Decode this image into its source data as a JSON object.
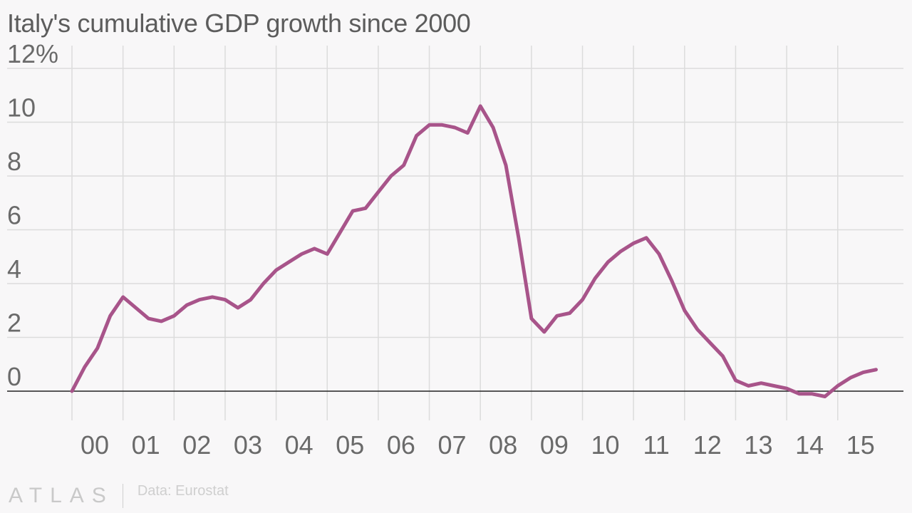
{
  "chart_data": {
    "type": "line",
    "title": "Italy's cumulative GDP growth since 2000",
    "xlabel": "",
    "ylabel": "",
    "ylim": [
      -0.8,
      12.5
    ],
    "y_ticks": [
      0,
      2,
      4,
      6,
      8,
      10,
      12
    ],
    "y_tick_labels": [
      "0",
      "2",
      "4",
      "6",
      "8",
      "10",
      "12%"
    ],
    "x_tick_labels": [
      " 00",
      " 01",
      " 02",
      " 03",
      " 04",
      " 05",
      " 06",
      " 07",
      " 08",
      " 09",
      " 10",
      " 11",
      " 12",
      " 13",
      " 14",
      " 15"
    ],
    "x_tick_years": [
      2000,
      2001,
      2002,
      2003,
      2004,
      2005,
      2006,
      2007,
      2008,
      2009,
      2010,
      2011,
      2012,
      2013,
      2014,
      2015
    ],
    "grid": true,
    "color": "#a8548a",
    "series": [
      {
        "x": [
          "2000-Q1",
          "2000-Q2",
          "2000-Q3",
          "2000-Q4",
          "2001-Q1",
          "2001-Q2",
          "2001-Q3",
          "2001-Q4",
          "2002-Q1",
          "2002-Q2",
          "2002-Q3",
          "2002-Q4",
          "2003-Q1",
          "2003-Q2",
          "2003-Q3",
          "2003-Q4",
          "2004-Q1",
          "2004-Q2",
          "2004-Q3",
          "2004-Q4",
          "2005-Q1",
          "2005-Q2",
          "2005-Q3",
          "2005-Q4",
          "2006-Q1",
          "2006-Q2",
          "2006-Q3",
          "2006-Q4",
          "2007-Q1",
          "2007-Q2",
          "2007-Q3",
          "2007-Q4",
          "2008-Q1",
          "2008-Q2",
          "2008-Q3",
          "2008-Q4",
          "2009-Q1",
          "2009-Q2",
          "2009-Q3",
          "2009-Q4",
          "2010-Q1",
          "2010-Q2",
          "2010-Q3",
          "2010-Q4",
          "2011-Q1",
          "2011-Q2",
          "2011-Q3",
          "2011-Q4",
          "2012-Q1",
          "2012-Q2",
          "2012-Q3",
          "2012-Q4",
          "2013-Q1",
          "2013-Q2",
          "2013-Q3",
          "2013-Q4",
          "2014-Q1",
          "2014-Q2",
          "2014-Q3",
          "2014-Q4",
          "2015-Q1",
          "2015-Q2",
          "2015-Q3",
          "2015-Q4"
        ],
        "values": [
          0,
          0.9,
          1.6,
          2.8,
          3.5,
          3.1,
          2.7,
          2.6,
          2.8,
          3.2,
          3.4,
          3.5,
          3.4,
          3.1,
          3.4,
          4.0,
          4.5,
          4.8,
          5.1,
          5.3,
          5.1,
          5.9,
          6.7,
          6.8,
          7.4,
          8.0,
          8.4,
          9.5,
          9.9,
          9.9,
          9.8,
          9.6,
          10.6,
          9.8,
          8.4,
          5.7,
          2.7,
          2.2,
          2.8,
          2.9,
          3.4,
          4.2,
          4.8,
          5.2,
          5.5,
          5.7,
          5.1,
          4.1,
          3.0,
          2.3,
          1.8,
          1.3,
          0.4,
          0.2,
          0.3,
          0.2,
          0.1,
          -0.1,
          -0.1,
          -0.2,
          0.2,
          0.5,
          0.7,
          0.8
        ]
      }
    ]
  },
  "footer": {
    "logo": "ATLAS",
    "source": "Data: Eurostat"
  }
}
